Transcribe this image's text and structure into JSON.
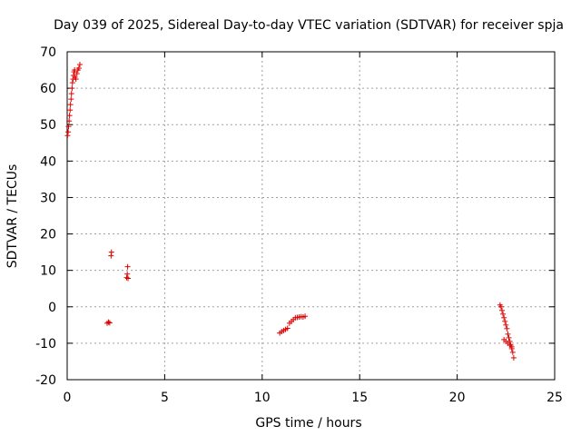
{
  "chart_data": {
    "type": "scatter",
    "title": "Day 039 of 2025, Sidereal Day-to-day VTEC variation (SDTVAR) for receiver spja",
    "xlabel": "GPS time / hours",
    "ylabel": "SDTVAR / TECUs",
    "xlim": [
      0,
      25
    ],
    "ylim": [
      -20,
      70
    ],
    "xticks": [
      "0",
      "5",
      "10",
      "15",
      "20",
      "25"
    ],
    "yticks": [
      "-20",
      "-10",
      "0",
      "10",
      "20",
      "30",
      "40",
      "50",
      "60",
      "70"
    ],
    "grid": true,
    "marker": "+",
    "color": "#dd0000",
    "series": [
      {
        "name": "SDTVAR",
        "points": [
          [
            0.02,
            47.0
          ],
          [
            0.05,
            48.0
          ],
          [
            0.07,
            49.5
          ],
          [
            0.1,
            51.0
          ],
          [
            0.12,
            52.5
          ],
          [
            0.15,
            54.0
          ],
          [
            0.17,
            55.5
          ],
          [
            0.2,
            57.0
          ],
          [
            0.22,
            58.5
          ],
          [
            0.25,
            60.0
          ],
          [
            0.27,
            61.5
          ],
          [
            0.3,
            62.5
          ],
          [
            0.32,
            63.5
          ],
          [
            0.35,
            64.5
          ],
          [
            0.38,
            65.0
          ],
          [
            0.4,
            63.0
          ],
          [
            0.45,
            62.5
          ],
          [
            0.5,
            64.0
          ],
          [
            0.55,
            65.0
          ],
          [
            0.6,
            65.5
          ],
          [
            0.65,
            66.5
          ],
          [
            2.05,
            -4.5
          ],
          [
            2.12,
            -4.2
          ],
          [
            2.18,
            -4.4
          ],
          [
            2.25,
            14.0
          ],
          [
            2.27,
            15.0
          ],
          [
            3.05,
            8.0
          ],
          [
            3.08,
            9.0
          ],
          [
            3.1,
            11.0
          ],
          [
            3.12,
            7.8
          ],
          [
            10.9,
            -7.2
          ],
          [
            11.0,
            -6.8
          ],
          [
            11.1,
            -6.5
          ],
          [
            11.2,
            -6.2
          ],
          [
            11.3,
            -5.9
          ],
          [
            11.4,
            -4.5
          ],
          [
            11.5,
            -4.0
          ],
          [
            11.6,
            -3.5
          ],
          [
            11.7,
            -3.0
          ],
          [
            11.8,
            -2.9
          ],
          [
            11.9,
            -2.8
          ],
          [
            12.0,
            -2.7
          ],
          [
            12.1,
            -2.8
          ],
          [
            12.2,
            -2.6
          ],
          [
            22.2,
            0.5
          ],
          [
            22.25,
            0.0
          ],
          [
            22.3,
            -1.0
          ],
          [
            22.35,
            -2.0
          ],
          [
            22.4,
            -3.0
          ],
          [
            22.45,
            -4.0
          ],
          [
            22.5,
            -5.0
          ],
          [
            22.55,
            -6.0
          ],
          [
            22.6,
            -7.5
          ],
          [
            22.65,
            -8.5
          ],
          [
            22.7,
            -9.5
          ],
          [
            22.75,
            -10.5
          ],
          [
            22.8,
            -11.5
          ],
          [
            22.85,
            -12.5
          ],
          [
            22.9,
            -14.0
          ],
          [
            22.4,
            -9.0
          ],
          [
            22.5,
            -9.5
          ],
          [
            22.6,
            -10.0
          ],
          [
            22.7,
            -10.5
          ],
          [
            22.8,
            -11.0
          ]
        ]
      }
    ]
  }
}
